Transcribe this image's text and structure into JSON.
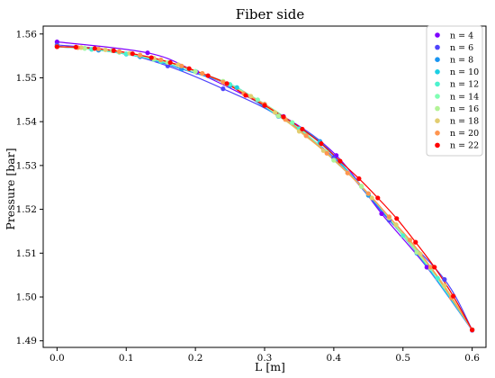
{
  "chart_data": {
    "type": "line",
    "title": "Fiber side",
    "xlabel": "L [m]",
    "ylabel": "Pressure [bar]",
    "xlim": [
      -0.02,
      0.62
    ],
    "ylim": [
      1.4885,
      1.5618
    ],
    "xticks": [
      0.0,
      0.1,
      0.2,
      0.3,
      0.4,
      0.5,
      0.6
    ],
    "xtick_labels": [
      "0.0",
      "0.1",
      "0.2",
      "0.3",
      "0.4",
      "0.5",
      "0.6"
    ],
    "yticks": [
      1.49,
      1.5,
      1.51,
      1.52,
      1.53,
      1.54,
      1.55,
      1.56
    ],
    "ytick_labels": [
      "1.49",
      "1.50",
      "1.51",
      "1.52",
      "1.53",
      "1.54",
      "1.55",
      "1.56"
    ],
    "grid": false,
    "legend_position": "top-right",
    "series": [
      {
        "name": "n = 4",
        "color": "#7f00ff",
        "x": [
          0.0,
          0.1309,
          0.2018,
          0.3273,
          0.4036,
          0.4691,
          0.5345,
          0.6
        ],
        "y": [
          1.5582,
          1.5557,
          1.5513,
          1.5412,
          1.5323,
          1.519,
          1.5068,
          1.4924
        ]
      },
      {
        "name": "n = 6",
        "color": "#4f44fc",
        "x": [
          0.0,
          0.08,
          0.16,
          0.24,
          0.32,
          0.4,
          0.48,
          0.56,
          0.6
        ],
        "y": [
          1.5575,
          1.5562,
          1.5527,
          1.5475,
          1.5413,
          1.5318,
          1.5175,
          1.504,
          1.4925
        ]
      },
      {
        "name": "n = 8",
        "color": "#1995f2",
        "x": [
          0.0,
          0.06,
          0.12,
          0.18,
          0.25,
          0.32,
          0.38,
          0.45,
          0.52,
          0.6
        ],
        "y": [
          1.5572,
          1.5563,
          1.5548,
          1.552,
          1.5482,
          1.5412,
          1.5355,
          1.5232,
          1.51,
          1.4925
        ]
      },
      {
        "name": "n = 10",
        "color": "#1ccfe3",
        "x": [
          0.0,
          0.05,
          0.1,
          0.15,
          0.2,
          0.26,
          0.32,
          0.38,
          0.45,
          0.52,
          0.6
        ],
        "y": [
          1.5571,
          1.5565,
          1.5554,
          1.5537,
          1.5514,
          1.5478,
          1.5413,
          1.5352,
          1.5235,
          1.5102,
          1.4925
        ]
      },
      {
        "name": "n = 12",
        "color": "#4cf2ce",
        "x": [
          0.0,
          0.05,
          0.1,
          0.15,
          0.2,
          0.25,
          0.3,
          0.35,
          0.4,
          0.45,
          0.5,
          0.55,
          0.6
        ],
        "y": [
          1.5571,
          1.5565,
          1.5555,
          1.5538,
          1.5515,
          1.5485,
          1.544,
          1.5384,
          1.5312,
          1.5236,
          1.514,
          1.5043,
          1.4925
        ]
      },
      {
        "name": "n = 14",
        "color": "#80feb3",
        "x": [
          0.0,
          0.04,
          0.09,
          0.14,
          0.19,
          0.24,
          0.29,
          0.34,
          0.39,
          0.44,
          0.49,
          0.54,
          0.6
        ],
        "y": [
          1.5571,
          1.5567,
          1.5558,
          1.5542,
          1.552,
          1.5492,
          1.545,
          1.5398,
          1.533,
          1.5252,
          1.5164,
          1.5065,
          1.4925
        ]
      },
      {
        "name": "n = 16",
        "color": "#b2f396",
        "x": [
          0.0,
          0.04,
          0.08,
          0.12,
          0.16,
          0.2,
          0.24,
          0.28,
          0.32,
          0.36,
          0.4,
          0.44,
          0.48,
          0.52,
          0.56,
          0.6
        ],
        "y": [
          1.5571,
          1.5568,
          1.5562,
          1.5551,
          1.5535,
          1.5514,
          1.5492,
          1.5458,
          1.5413,
          1.5368,
          1.5312,
          1.5253,
          1.518,
          1.5102,
          1.5025,
          1.4925
        ]
      },
      {
        "name": "n = 18",
        "color": "#e2cd70",
        "x": [
          0.0,
          0.035,
          0.07,
          0.105,
          0.14,
          0.175,
          0.21,
          0.245,
          0.28,
          0.315,
          0.35,
          0.385,
          0.42,
          0.455,
          0.49,
          0.525,
          0.56,
          0.6
        ],
        "y": [
          1.5571,
          1.5569,
          1.5564,
          1.5556,
          1.5545,
          1.553,
          1.551,
          1.5486,
          1.5458,
          1.5421,
          1.5378,
          1.5334,
          1.5283,
          1.5226,
          1.5165,
          1.5098,
          1.5026,
          1.4925
        ]
      },
      {
        "name": "n = 20",
        "color": "#ff954f",
        "x": [
          0.0,
          0.03,
          0.06,
          0.09,
          0.12,
          0.15,
          0.18,
          0.21,
          0.24,
          0.27,
          0.3,
          0.33,
          0.36,
          0.39,
          0.42,
          0.45,
          0.48,
          0.51,
          0.54,
          0.57,
          0.6
        ],
        "y": [
          1.5571,
          1.5569,
          1.5566,
          1.556,
          1.5552,
          1.5541,
          1.5527,
          1.551,
          1.549,
          1.5464,
          1.544,
          1.5405,
          1.5368,
          1.5328,
          1.5283,
          1.5236,
          1.5183,
          1.513,
          1.5068,
          1.4998,
          1.4925
        ]
      },
      {
        "name": "n = 22",
        "color": "#ff0000",
        "x": [
          0.0,
          0.0273,
          0.0545,
          0.0818,
          0.1091,
          0.1364,
          0.1636,
          0.1909,
          0.2182,
          0.2455,
          0.2727,
          0.3,
          0.3273,
          0.3545,
          0.3818,
          0.4091,
          0.4364,
          0.4636,
          0.4909,
          0.5182,
          0.5455,
          0.5727,
          0.6
        ],
        "y": [
          1.5571,
          1.557,
          1.5567,
          1.5562,
          1.5555,
          1.5546,
          1.5535,
          1.5521,
          1.5505,
          1.5487,
          1.546,
          1.5437,
          1.5411,
          1.5383,
          1.535,
          1.531,
          1.527,
          1.5226,
          1.5179,
          1.5125,
          1.5068,
          1.5002,
          1.4925
        ]
      }
    ]
  }
}
